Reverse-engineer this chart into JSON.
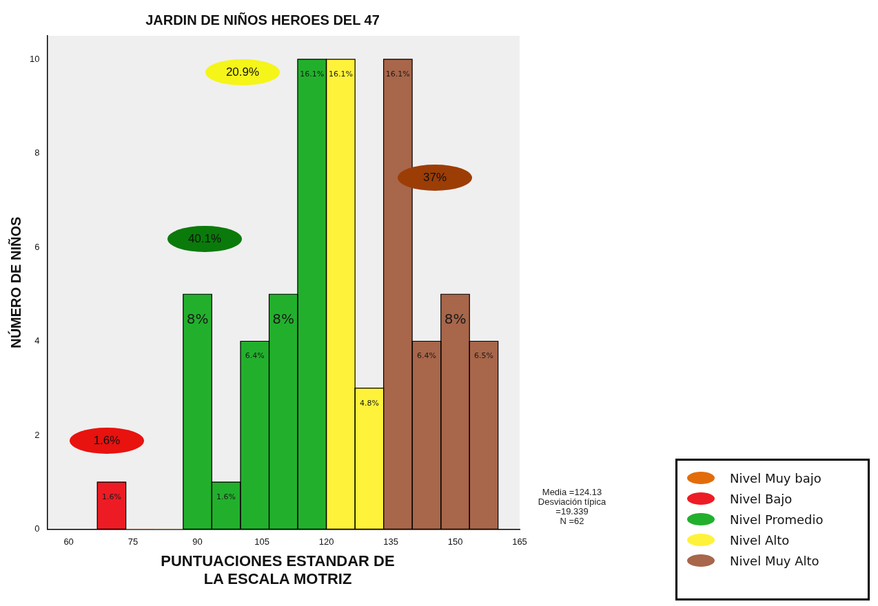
{
  "chart_data": {
    "type": "histogram",
    "title": "JARDIN DE NIÑOS HEROES DEL 47",
    "xlabel": "PUNTUACIONES ESTANDAR DE LA ESCALA MOTRIZ",
    "ylabel": "NÚMERO DE NIÑOS",
    "bins": [
      66.7,
      73.3,
      80,
      86.7,
      93.3,
      100,
      106.7,
      113.3,
      120,
      126.7,
      133.3,
      140,
      146.7,
      153.3,
      160
    ],
    "series": [
      {
        "name": "Nivel Muy bajo",
        "color": "#e36c0a",
        "values": [
          0,
          0,
          0,
          0,
          0,
          0,
          0,
          0,
          0,
          0,
          0,
          0,
          0,
          0
        ]
      },
      {
        "name": "Nivel Bajo",
        "color": "#ed1c24",
        "values": [
          1,
          0,
          null,
          null,
          null,
          null,
          null,
          null,
          null,
          null,
          null,
          null,
          null,
          null
        ]
      },
      {
        "name": "Nivel Promedio",
        "color": "#22b02c",
        "values": [
          null,
          null,
          0,
          5,
          1,
          4,
          5,
          10,
          null,
          null,
          null,
          null,
          null,
          null
        ]
      },
      {
        "name": "Nivel Alto",
        "color": "#fff23a",
        "values": [
          null,
          null,
          null,
          null,
          null,
          null,
          null,
          null,
          10,
          3,
          null,
          null,
          null,
          null
        ]
      },
      {
        "name": "Nivel Muy Alto",
        "color": "#a8664a",
        "values": [
          null,
          null,
          null,
          null,
          null,
          null,
          null,
          null,
          null,
          null,
          10,
          4,
          5,
          4
        ]
      }
    ],
    "xlim": [
      55,
      165
    ],
    "xticks": [
      60,
      75,
      90,
      105,
      120,
      135,
      150,
      165
    ],
    "ylim": [
      0,
      10.5
    ],
    "yticks": [
      0,
      2,
      4,
      6,
      8,
      10
    ],
    "legend": "bottom right",
    "annotations": [
      {
        "text": "1.6%",
        "x": 70,
        "y": 1
      },
      {
        "text": "8%",
        "x": 90,
        "y": 5
      },
      {
        "text": "1.6%",
        "x": 96.65,
        "y": 1
      },
      {
        "text": "6.4%",
        "x": 103.35,
        "y": 4
      },
      {
        "text": "8%",
        "x": 110,
        "y": 5
      },
      {
        "text": "16.1%",
        "x": 116.65,
        "y": 10
      },
      {
        "text": "16.1%",
        "x": 123.35,
        "y": 10
      },
      {
        "text": "4.8%",
        "x": 130,
        "y": 3
      },
      {
        "text": "16.1%",
        "x": 136.65,
        "y": 10
      },
      {
        "text": "6.4%",
        "x": 143.35,
        "y": 4
      },
      {
        "text": "8%",
        "x": 150,
        "y": 5
      },
      {
        "text": "6.5%",
        "x": 156.65,
        "y": 4
      },
      "1.6%",
      "40.1%",
      "20.9%",
      "37%",
      "Media =124.13",
      "Desviación típica =19.339",
      "N =62"
    ]
  }
}
